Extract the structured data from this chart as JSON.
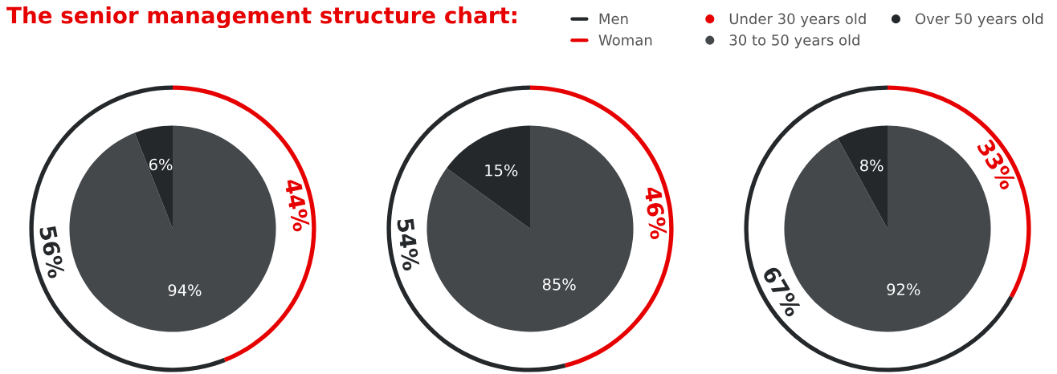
{
  "chart_data": [
    {
      "type": "pie",
      "title": "The senior management structure chart:",
      "legend": "top right",
      "categories": [
        "Under 30 years old",
        "30 to 50 years old",
        "Over 50 years old",
        "Men",
        "Woman"
      ],
      "series": [
        {
          "values": [
            0,
            94,
            6,
            null,
            null
          ],
          "colors": [
            "#e60000",
            "#45484b",
            "#25282b",
            null,
            null
          ],
          "value_labels": [
            null,
            "94%",
            "6%",
            null,
            null
          ]
        },
        {
          "type": "donut",
          "values": [
            null,
            null,
            null,
            56,
            44
          ],
          "colors": [
            null,
            null,
            null,
            "#25282b",
            "#e60000"
          ],
          "value_labels": [
            null,
            null,
            null,
            "56%",
            "44%"
          ]
        }
      ]
    },
    {
      "type": "pie",
      "series": [
        {
          "values": [
            0,
            85,
            15,
            null,
            null
          ],
          "colors": [
            "#e60000",
            "#45484b",
            "#25282b",
            null,
            null
          ],
          "value_labels": [
            null,
            "85%",
            "15%",
            null,
            null
          ]
        },
        {
          "type": "donut",
          "values": [
            null,
            null,
            null,
            54,
            46
          ],
          "colors": [
            null,
            null,
            null,
            "#25282b",
            "#e60000"
          ],
          "value_labels": [
            null,
            null,
            null,
            "54%",
            "46%"
          ]
        }
      ]
    },
    {
      "type": "pie",
      "series": [
        {
          "values": [
            0,
            92,
            8,
            null,
            null
          ],
          "colors": [
            "#e60000",
            "#45484b",
            "#25282b",
            null,
            null
          ],
          "value_labels": [
            null,
            "92%",
            "8%",
            null,
            null
          ]
        },
        {
          "type": "donut",
          "values": [
            null,
            null,
            null,
            67,
            33
          ],
          "colors": [
            null,
            null,
            null,
            "#25282b",
            "#e60000"
          ],
          "value_labels": [
            null,
            null,
            null,
            "67%",
            "33%"
          ]
        }
      ]
    }
  ]
}
